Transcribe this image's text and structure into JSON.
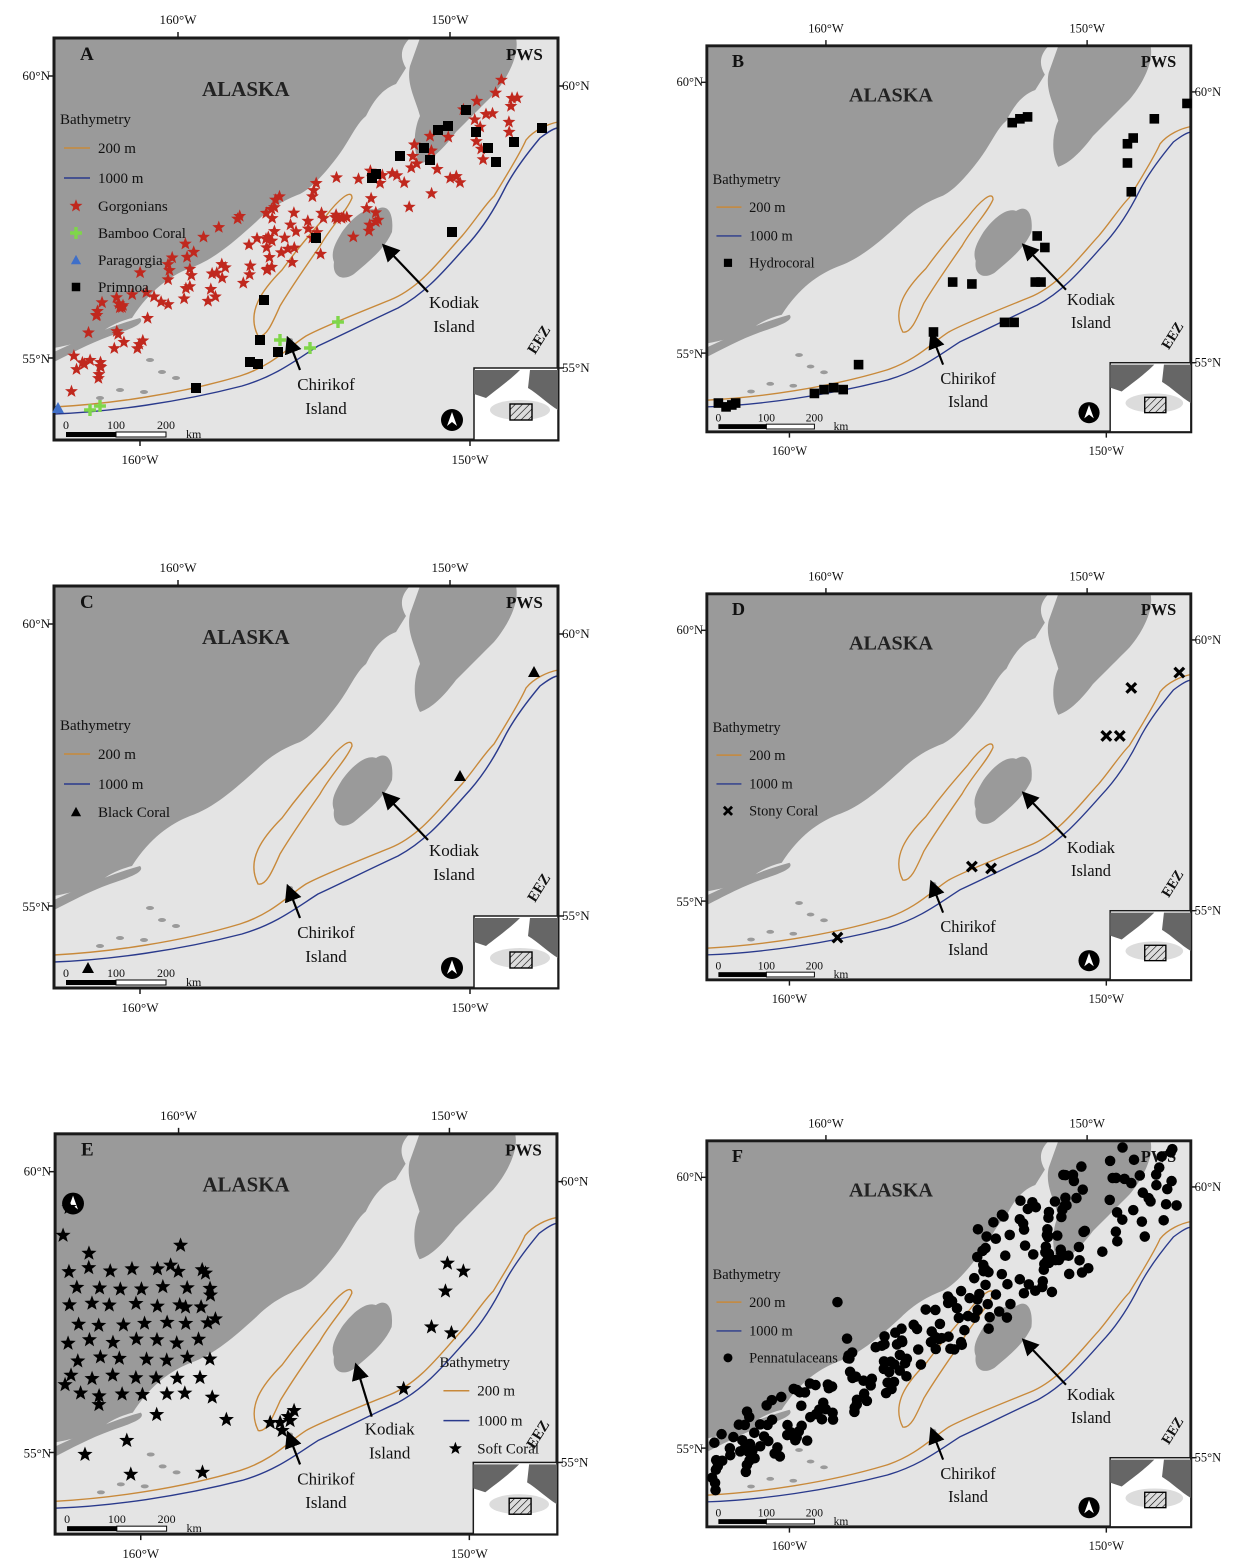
{
  "labels": {
    "region": "ALASKA",
    "pws": "PWS",
    "eez": "EEZ",
    "kodiak_line1": "Kodiak",
    "kodiak_line2": "Island",
    "chirikof_line1": "Chirikof",
    "chirikof_line2": "Island",
    "lon_west": "160°W",
    "lon_east": "150°W",
    "lat_north": "60°N",
    "lat_south": "55°N",
    "scale_ticks": [
      "0",
      "100",
      "200"
    ],
    "scale_unit": "km",
    "bathymetry_title": "Bathymetry",
    "bathy_200": "200 m",
    "bathy_1000": "1000 m"
  },
  "colors": {
    "land": "#9a9a9a",
    "sea": "#e4e4e4",
    "frame": "#1a1a1a",
    "contour_200": "#c8893a",
    "contour_1000": "#2a3a8c",
    "gorgonian": "#c0281e",
    "bamboo": "#7fd64a",
    "paragorgia": "#3f6fc8",
    "black_marker": "#000000"
  },
  "panels": [
    {
      "letter": "A",
      "legend": [
        {
          "label": "Gorgonians",
          "symbol": "star",
          "color": "#c0281e"
        },
        {
          "label": "Bamboo Coral",
          "symbol": "plus",
          "color": "#7fd64a"
        },
        {
          "label": "Paragorgia",
          "symbol": "triangle",
          "color": "#3f6fc8"
        },
        {
          "label": "Primnoa",
          "symbol": "square",
          "color": "#000000"
        }
      ]
    },
    {
      "letter": "B",
      "legend": [
        {
          "label": "Hydrocoral",
          "symbol": "square",
          "color": "#000000"
        }
      ]
    },
    {
      "letter": "C",
      "legend": [
        {
          "label": "Black Coral",
          "symbol": "triangle",
          "color": "#000000"
        }
      ]
    },
    {
      "letter": "D",
      "legend": [
        {
          "label": "Stony Coral",
          "symbol": "cross",
          "color": "#000000"
        }
      ]
    },
    {
      "letter": "E",
      "legend": [
        {
          "label": "Soft Coral",
          "symbol": "star",
          "color": "#000000"
        }
      ]
    },
    {
      "letter": "F",
      "legend": [
        {
          "label": "Pennatulaceans",
          "symbol": "circle",
          "color": "#000000"
        }
      ]
    }
  ]
}
